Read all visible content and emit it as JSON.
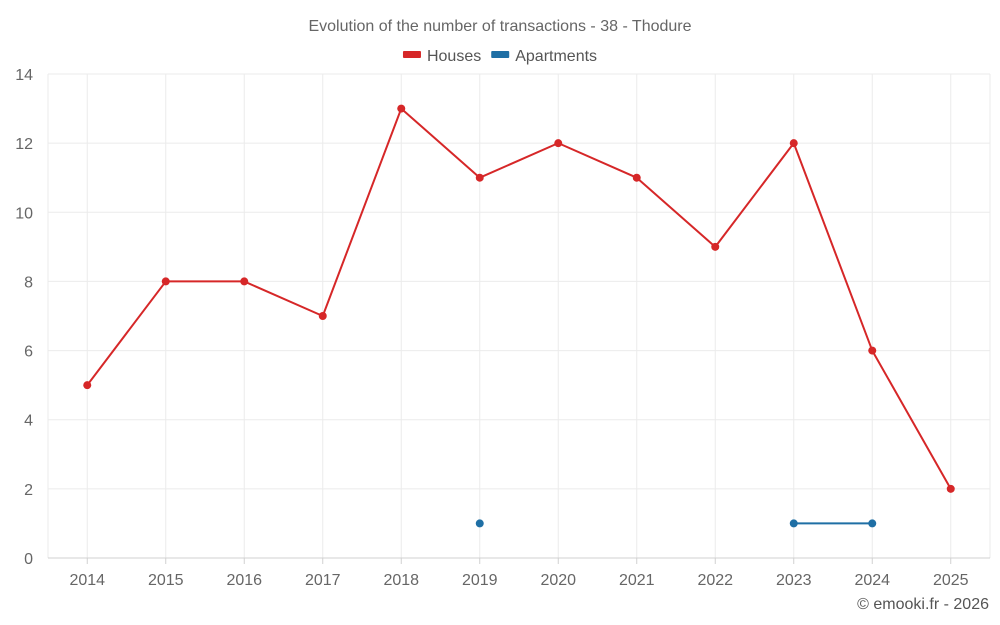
{
  "chart_data": {
    "type": "line",
    "title": "Evolution of the number of transactions - 38 - Thodure",
    "categories": [
      "2014",
      "2015",
      "2016",
      "2017",
      "2018",
      "2019",
      "2020",
      "2021",
      "2022",
      "2023",
      "2024",
      "2025"
    ],
    "ylim": [
      0,
      14
    ],
    "yticks": [
      0,
      2,
      4,
      6,
      8,
      10,
      12,
      14
    ],
    "grid": true,
    "legend_position": "top-center",
    "series": [
      {
        "name": "Houses",
        "color": "#d62728",
        "values": [
          5,
          8,
          8,
          7,
          13,
          11,
          12,
          11,
          9,
          12,
          6,
          2
        ]
      },
      {
        "name": "Apartments",
        "color": "#1f6fa5",
        "values": [
          null,
          null,
          null,
          null,
          null,
          1,
          null,
          null,
          null,
          1,
          1,
          null
        ]
      }
    ],
    "xlabel": "",
    "ylabel": ""
  },
  "credit": "© emooki.fr - 2026"
}
